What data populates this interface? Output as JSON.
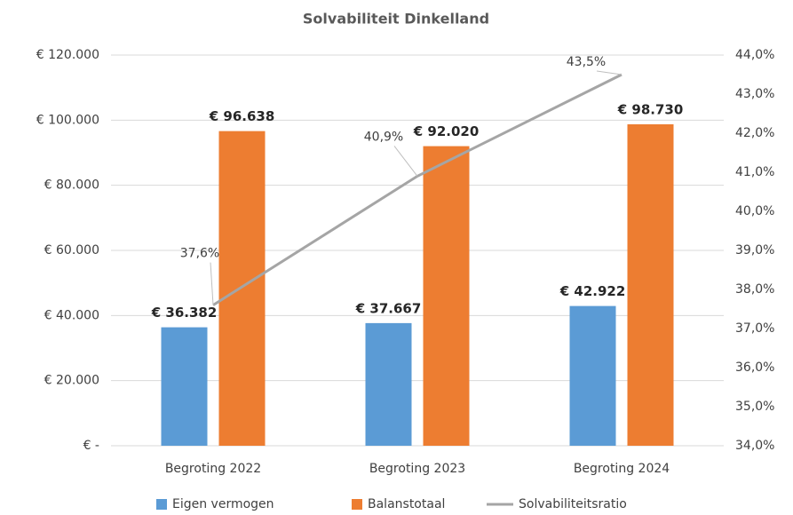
{
  "chart_data": {
    "type": "bar",
    "title": "Solvabiliteit Dinkelland",
    "categories": [
      "Begroting 2022",
      "Begroting 2023",
      "Begroting 2024"
    ],
    "series": [
      {
        "name": "Eigen vermogen",
        "type": "bar",
        "color": "#5b9bd5",
        "values": [
          36382,
          37667,
          42922
        ],
        "value_labels": [
          "€ 36.382",
          "€ 37.667",
          "€ 42.922"
        ]
      },
      {
        "name": "Balanstotaal",
        "type": "bar",
        "color": "#ed7d31",
        "values": [
          96638,
          92020,
          98730
        ],
        "value_labels": [
          "€ 96.638",
          "€ 92.020",
          "€ 98.730"
        ]
      },
      {
        "name": "Solvabiliteitsratio",
        "type": "line",
        "axis": "y2",
        "color": "#a5a5a5",
        "values": [
          37.6,
          40.9,
          43.5
        ],
        "value_labels": [
          "37,6%",
          "40,9%",
          "43,5%"
        ]
      }
    ],
    "ylim": [
      0,
      120000
    ],
    "yticks": [
      {
        "value": 0,
        "label": "€ -"
      },
      {
        "value": 20000,
        "label": "€ 20.000"
      },
      {
        "value": 40000,
        "label": "€ 40.000"
      },
      {
        "value": 60000,
        "label": "€ 60.000"
      },
      {
        "value": 80000,
        "label": "€ 80.000"
      },
      {
        "value": 100000,
        "label": "€ 100.000"
      },
      {
        "value": 120000,
        "label": "€ 120.000"
      }
    ],
    "y2lim": [
      34,
      44
    ],
    "y2ticks": [
      {
        "value": 34,
        "label": "34,0%"
      },
      {
        "value": 35,
        "label": "35,0%"
      },
      {
        "value": 36,
        "label": "36,0%"
      },
      {
        "value": 37,
        "label": "37,0%"
      },
      {
        "value": 38,
        "label": "38,0%"
      },
      {
        "value": 39,
        "label": "39,0%"
      },
      {
        "value": 40,
        "label": "40,0%"
      },
      {
        "value": 41,
        "label": "41,0%"
      },
      {
        "value": 42,
        "label": "42,0%"
      },
      {
        "value": 43,
        "label": "43,0%"
      },
      {
        "value": 44,
        "label": "44,0%"
      }
    ],
    "grid": true,
    "legend": "bottom"
  }
}
